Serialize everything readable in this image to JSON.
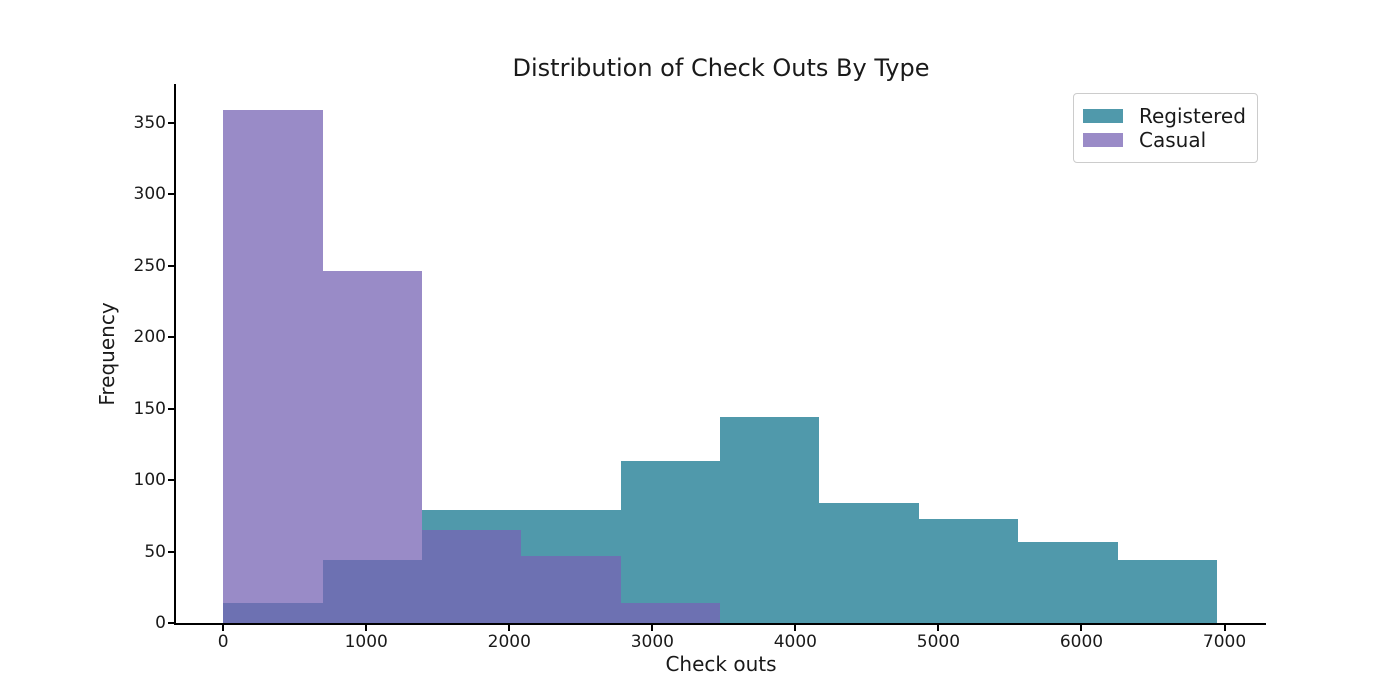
{
  "chart_data": {
    "type": "bar",
    "variant": "overlapping-histogram",
    "title": "Distribution of Check Outs By Type",
    "xlabel": "Check outs",
    "ylabel": "Frequency",
    "bin_edges": [
      2,
      696,
      1391,
      2085,
      2780,
      3474,
      4168,
      4863,
      5557,
      6252,
      6946
    ],
    "series": [
      {
        "name": "Registered",
        "color": "#5099AB",
        "fill": "#5099AB",
        "values": [
          14,
          44,
          79,
          79,
          113,
          144,
          84,
          73,
          57,
          44
        ]
      },
      {
        "name": "Casual",
        "color": "#9A8BC7",
        "fill": "rgba(119,100,180,0.75)",
        "values": [
          359,
          246,
          65,
          47,
          14,
          0,
          0,
          0,
          0,
          0
        ]
      }
    ],
    "xticks": [
      0,
      1000,
      2000,
      3000,
      4000,
      5000,
      6000,
      7000
    ],
    "yticks": [
      0,
      50,
      100,
      150,
      200,
      250,
      300,
      350
    ],
    "xlim": [
      -330,
      7290
    ],
    "ylim": [
      0,
      377
    ],
    "grid": false,
    "legend_position": "upper right",
    "text_color": "#1a1a1a",
    "background_color": "#ffffff"
  }
}
